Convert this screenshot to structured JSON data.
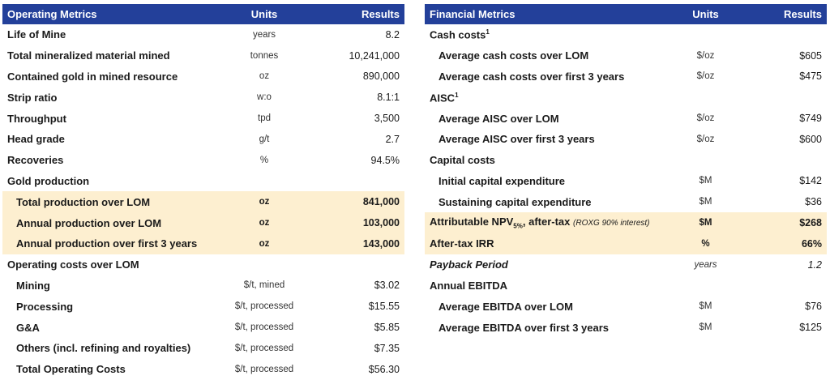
{
  "operating": {
    "header": {
      "label": "Operating Metrics",
      "units": "Units",
      "results": "Results"
    },
    "rows": [
      {
        "label": "Life of Mine",
        "units": "years",
        "result": "8.2"
      },
      {
        "label": "Total mineralized material mined",
        "units": "tonnes",
        "result": "10,241,000"
      },
      {
        "label": "Contained gold in mined resource",
        "units": "oz",
        "result": "890,000"
      },
      {
        "label": "Strip ratio",
        "units": "w:o",
        "result": "8.1:1"
      },
      {
        "label": "Throughput",
        "units": "tpd",
        "result": "3,500"
      },
      {
        "label": "Head grade",
        "units": "g/t",
        "result": "2.7"
      },
      {
        "label": "Recoveries",
        "units": "%",
        "result": "94.5%"
      },
      {
        "label": "Gold production",
        "units": "",
        "result": ""
      },
      {
        "label": "Total production over LOM",
        "units": "oz",
        "result": "841,000"
      },
      {
        "label": "Annual production over LOM",
        "units": "oz",
        "result": "103,000"
      },
      {
        "label": "Annual production over first 3 years",
        "units": "oz",
        "result": "143,000"
      },
      {
        "label": "Operating costs over LOM",
        "units": "",
        "result": ""
      },
      {
        "label": "Mining",
        "units": "$/t, mined",
        "result": "$3.02"
      },
      {
        "label": "Processing",
        "units": "$/t, processed",
        "result": "$15.55"
      },
      {
        "label": "G&A",
        "units": "$/t, processed",
        "result": "$5.85"
      },
      {
        "label": "Others (incl. refining and royalties)",
        "units": "$/t, processed",
        "result": "$7.35"
      },
      {
        "label": "Total Operating Costs",
        "units": "$/t, processed",
        "result": "$56.30"
      }
    ]
  },
  "financial": {
    "header": {
      "label": "Financial Metrics",
      "units": "Units",
      "results": "Results"
    },
    "rows": [
      {
        "label": "Cash costs",
        "sup": "1",
        "units": "",
        "result": ""
      },
      {
        "label": "Average cash costs over LOM",
        "units": "$/oz",
        "result": "$605"
      },
      {
        "label": "Average cash costs over first 3 years",
        "units": "$/oz",
        "result": "$475"
      },
      {
        "label": "AISC",
        "sup": "1",
        "units": "",
        "result": ""
      },
      {
        "label": "Average AISC over LOM",
        "units": "$/oz",
        "result": "$749"
      },
      {
        "label": "Average AISC over first 3 years",
        "units": "$/oz",
        "result": "$600"
      },
      {
        "label": "Capital costs",
        "units": "",
        "result": ""
      },
      {
        "label": "Initial capital expenditure",
        "units": "$M",
        "result": "$142"
      },
      {
        "label": "Sustaining capital expenditure",
        "units": "$M",
        "result": "$36"
      },
      {
        "label": "Attributable NPV",
        "sub": "5%",
        "label_suffix": ", after-tax",
        "note": "(ROXG 90% interest)",
        "units": "$M",
        "result": "$268"
      },
      {
        "label": "After-tax IRR",
        "units": "%",
        "result": "66%"
      },
      {
        "label": "Payback Period",
        "units": "years",
        "result": "1.2"
      },
      {
        "label": "Annual EBITDA",
        "units": "",
        "result": ""
      },
      {
        "label": "Average EBITDA over LOM",
        "units": "$M",
        "result": "$76"
      },
      {
        "label": "Average EBITDA over first 3 years",
        "units": "$M",
        "result": "$125"
      }
    ]
  }
}
